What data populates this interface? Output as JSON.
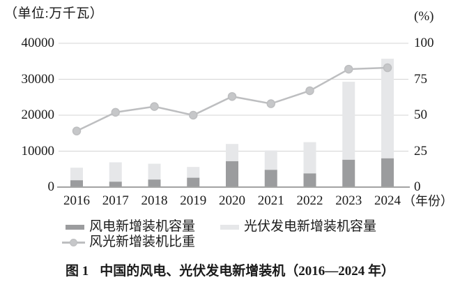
{
  "chart_data": {
    "type": "bar",
    "subtype": "stacked-bars-with-percentage-line",
    "categories": [
      "2016",
      "2017",
      "2018",
      "2019",
      "2020",
      "2021",
      "2022",
      "2023",
      "2024"
    ],
    "series": [
      {
        "name": "风电新增装机容量",
        "type": "bar",
        "stack": "capacity",
        "axis": "left",
        "color": "#9b9c9e",
        "values": [
          1900,
          1500,
          2100,
          2600,
          7200,
          4800,
          3800,
          7600,
          8000
        ]
      },
      {
        "name": "光伏发电新增装机容量",
        "type": "bar",
        "stack": "capacity",
        "axis": "left",
        "color": "#e6e7e9",
        "values": [
          3500,
          5400,
          4400,
          3000,
          4800,
          5400,
          8700,
          21700,
          27700
        ]
      },
      {
        "name": "风光新增装机比重",
        "type": "line",
        "axis": "right",
        "color": "#bdbec0",
        "marker_color": "#c6c7c9",
        "values": [
          39,
          52,
          56,
          50,
          63,
          58,
          67,
          82,
          83
        ]
      }
    ],
    "left_axis": {
      "unit_label": "（单位:万千瓦）",
      "ticks": [
        0,
        10000,
        20000,
        30000,
        40000
      ],
      "min": 0,
      "max": 40000
    },
    "right_axis": {
      "unit_label": "(%)",
      "ticks": [
        0,
        25,
        50,
        75,
        100
      ],
      "min": 0,
      "max": 100
    },
    "x_axis": {
      "suffix_label": "（年份）"
    },
    "grid": true,
    "grid_color": "#d4d4d4",
    "axis_line_color": "#a3a3a3",
    "legend_position": "bottom-left"
  },
  "legend": {
    "items": [
      {
        "label": "风电新增装机容量",
        "swatch": "bar",
        "color": "#9b9c9e"
      },
      {
        "label": "光伏发电新增装机容量",
        "swatch": "bar",
        "color": "#e6e7e9"
      },
      {
        "label": "风光新增装机比重",
        "swatch": "line-marker",
        "color": "#bdbec0"
      }
    ]
  },
  "caption": {
    "label": "图 1",
    "title": "中国的风电、光伏发电新增装机（2016—2024 年）"
  }
}
